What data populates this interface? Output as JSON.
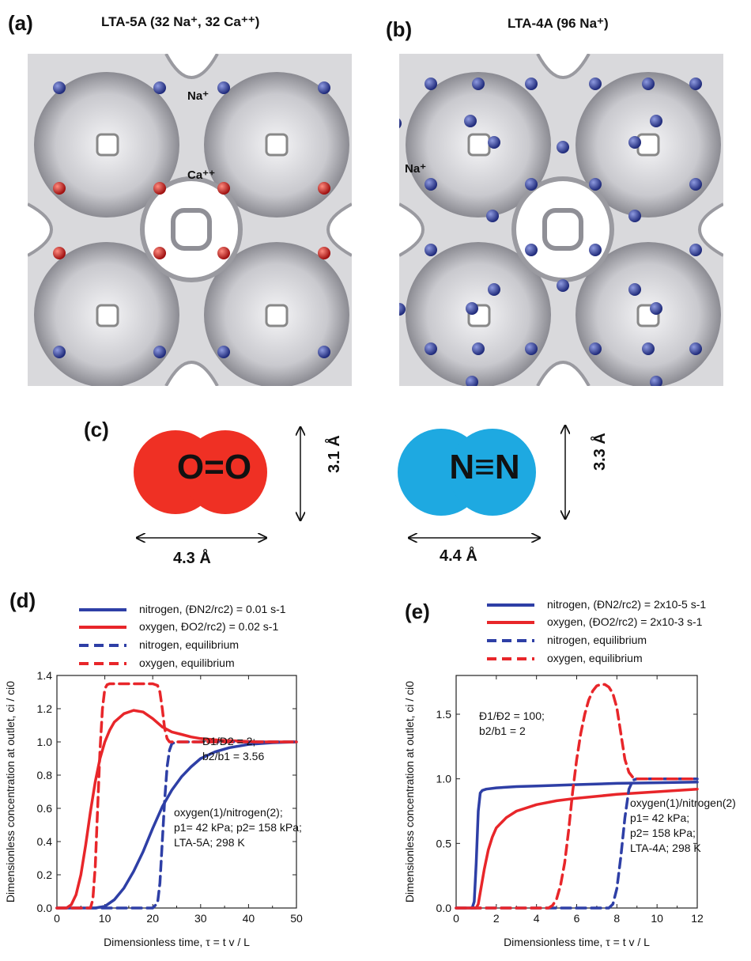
{
  "panel_a": {
    "label": "(a)",
    "title": "LTA-5A (32 Na⁺, 32 Ca⁺⁺)",
    "ion_na": "Na⁺",
    "ion_ca": "Ca⁺⁺",
    "colors": {
      "na": "#2b3690",
      "ca": "#c01818",
      "framework": "#b8b8bc"
    }
  },
  "panel_b": {
    "label": "(b)",
    "title": "LTA-4A (96 Na⁺)",
    "ion_na": "Na⁺"
  },
  "panel_c": {
    "label": "(c)",
    "o2": {
      "formula": "O=O",
      "color": "#ef3024",
      "height": "3.1 Å",
      "width": "4.3 Å"
    },
    "n2": {
      "formula": "N≡N",
      "color": "#1ea9e1",
      "height": "3.3 Å",
      "width": "4.4 Å"
    }
  },
  "panel_d": {
    "label": "(d)",
    "legend": [
      {
        "text": "nitrogen, (ĐN2/rc2) = 0.01 s-1"
      },
      {
        "text": "oxygen, ĐO2/rc2) = 0.02 s-1"
      },
      {
        "text": "nitrogen, equilibrium"
      },
      {
        "text": "oxygen, equilibrium"
      }
    ],
    "note1": [
      "Đ1/Đ2 = 2;",
      "b2/b1 = 3.56"
    ],
    "note2": [
      "oxygen(1)/nitrogen(2);",
      "p1= 42 kPa; p2= 158 kPa;",
      "LTA-5A; 298  K"
    ],
    "xlabel": "Dimensionless time, τ = t v / L",
    "ylabel": "Dimensionless concentration at outlet, ci / ci0"
  },
  "panel_e": {
    "label": "(e)",
    "legend": [
      {
        "text": "nitrogen, (ĐN2/rc2) = 2x10-5 s-1"
      },
      {
        "text": "oxygen, (ĐO2/rc2) = 2x10-3 s-1"
      },
      {
        "text": "nitrogen, equilibrium"
      },
      {
        "text": "oxygen, equilibrium"
      }
    ],
    "note1": [
      "Đ1/Đ2 = 100;",
      "b2/b1 = 2"
    ],
    "note2": [
      "oxygen(1)/nitrogen(2)",
      "p1= 42 kPa;",
      "p2= 158 kPa;",
      "LTA-4A; 298  K"
    ],
    "xlabel": "Dimensionless time, τ = t v / L",
    "ylabel": "Dimensionless concentration at outlet, ci / ci0"
  },
  "chart_data": [
    {
      "type": "line",
      "panel": "(d)",
      "xlim": [
        0,
        50
      ],
      "ylim": [
        0,
        1.4
      ],
      "xticks": [
        "0",
        "10",
        "20",
        "30",
        "40",
        "50"
      ],
      "yticks": [
        "0.0",
        "0.2",
        "0.4",
        "0.6",
        "0.8",
        "1.0",
        "1.2",
        "1.4"
      ],
      "colors": {
        "nitrogen": "#2e3fa6",
        "oxygen": "#e8262a"
      },
      "series": [
        {
          "name": "nitrogen, (ĐN2/rc2) = 0.01 s-1",
          "style": "solid",
          "color": "#2e3fa6",
          "x": [
            0,
            8,
            10,
            12,
            14,
            16,
            18,
            20,
            22,
            24,
            26,
            28,
            30,
            33,
            36,
            40,
            45,
            50
          ],
          "y": [
            0,
            0,
            0.01,
            0.05,
            0.12,
            0.22,
            0.34,
            0.48,
            0.61,
            0.71,
            0.79,
            0.85,
            0.9,
            0.94,
            0.965,
            0.985,
            0.995,
            1.0
          ]
        },
        {
          "name": "oxygen, ĐO2/rc2) = 0.02 s-1",
          "style": "solid",
          "color": "#e8262a",
          "x": [
            0,
            2,
            3,
            4,
            5,
            6,
            7,
            8,
            9,
            10,
            11,
            12,
            14,
            16,
            18,
            20,
            22,
            24,
            26,
            28,
            30,
            34,
            38,
            42,
            46,
            50
          ],
          "y": [
            0,
            0,
            0.02,
            0.08,
            0.2,
            0.38,
            0.58,
            0.76,
            0.9,
            1.0,
            1.07,
            1.12,
            1.17,
            1.19,
            1.18,
            1.14,
            1.09,
            1.06,
            1.045,
            1.03,
            1.02,
            1.01,
            1.005,
            1.0,
            1.0,
            1.0
          ]
        },
        {
          "name": "nitrogen, equilibrium",
          "style": "dashed",
          "color": "#2e3fa6",
          "x": [
            0,
            20,
            21,
            21.5,
            22,
            22.5,
            23,
            23.5,
            24,
            25,
            26,
            50
          ],
          "y": [
            0,
            0,
            0.03,
            0.15,
            0.4,
            0.65,
            0.85,
            0.95,
            0.99,
            1.0,
            1.0,
            1.0
          ]
        },
        {
          "name": "oxygen, equilibrium",
          "style": "dashed",
          "color": "#e8262a",
          "x": [
            0,
            7,
            7.5,
            8,
            8.5,
            9,
            9.5,
            10,
            10.5,
            11,
            20,
            21,
            21.5,
            22,
            22.5,
            23,
            23.5,
            24,
            50
          ],
          "y": [
            0,
            0,
            0.05,
            0.25,
            0.6,
            0.95,
            1.2,
            1.32,
            1.345,
            1.35,
            1.35,
            1.34,
            1.3,
            1.2,
            1.08,
            1.02,
            1.0,
            1.0,
            1.0
          ]
        }
      ]
    },
    {
      "type": "line",
      "panel": "(e)",
      "xlim": [
        0,
        12
      ],
      "ylim": [
        0,
        1.8
      ],
      "xticks": [
        "0",
        "2",
        "4",
        "6",
        "8",
        "10",
        "12"
      ],
      "yticks": [
        "0.0",
        "0.5",
        "1.0",
        "1.5"
      ],
      "colors": {
        "nitrogen": "#2e3fa6",
        "oxygen": "#e8262a"
      },
      "series": [
        {
          "name": "nitrogen, (ĐN2/rc2) = 2x10-5 s-1",
          "style": "solid",
          "color": "#2e3fa6",
          "x": [
            0,
            0.8,
            0.9,
            1.0,
            1.1,
            1.2,
            1.3,
            1.5,
            2,
            3,
            4,
            6,
            8,
            10,
            12
          ],
          "y": [
            0,
            0,
            0.05,
            0.35,
            0.75,
            0.89,
            0.91,
            0.92,
            0.93,
            0.94,
            0.945,
            0.955,
            0.965,
            0.97,
            0.975
          ]
        },
        {
          "name": "oxygen, (ĐO2/rc2) = 2x10-3 s-1",
          "style": "solid",
          "color": "#e8262a",
          "x": [
            0,
            1.0,
            1.1,
            1.2,
            1.4,
            1.6,
            1.8,
            2,
            2.5,
            3,
            4,
            5,
            6,
            8,
            10,
            12
          ],
          "y": [
            0,
            0,
            0.03,
            0.12,
            0.3,
            0.45,
            0.55,
            0.62,
            0.7,
            0.75,
            0.8,
            0.83,
            0.85,
            0.88,
            0.9,
            0.92
          ]
        },
        {
          "name": "nitrogen, equilibrium",
          "style": "dashed",
          "color": "#2e3fa6",
          "x": [
            0,
            7.6,
            7.8,
            8.0,
            8.2,
            8.4,
            8.6,
            8.8,
            9,
            12
          ],
          "y": [
            0,
            0,
            0.03,
            0.15,
            0.4,
            0.7,
            0.92,
            0.99,
            1.0,
            1.0
          ]
        },
        {
          "name": "oxygen, equilibrium",
          "style": "dashed",
          "color": "#e8262a",
          "x": [
            0,
            4.6,
            4.8,
            5.0,
            5.2,
            5.4,
            5.6,
            5.8,
            6.0,
            6.2,
            6.4,
            6.6,
            6.8,
            7.0,
            7.2,
            7.4,
            7.6,
            7.8,
            8.0,
            8.2,
            8.4,
            8.6,
            8.8,
            9,
            12
          ],
          "y": [
            0,
            0,
            0.02,
            0.07,
            0.18,
            0.35,
            0.6,
            0.9,
            1.15,
            1.35,
            1.5,
            1.61,
            1.68,
            1.72,
            1.73,
            1.73,
            1.71,
            1.66,
            1.55,
            1.35,
            1.15,
            1.05,
            1.01,
            1.0,
            1.0
          ]
        }
      ]
    }
  ]
}
